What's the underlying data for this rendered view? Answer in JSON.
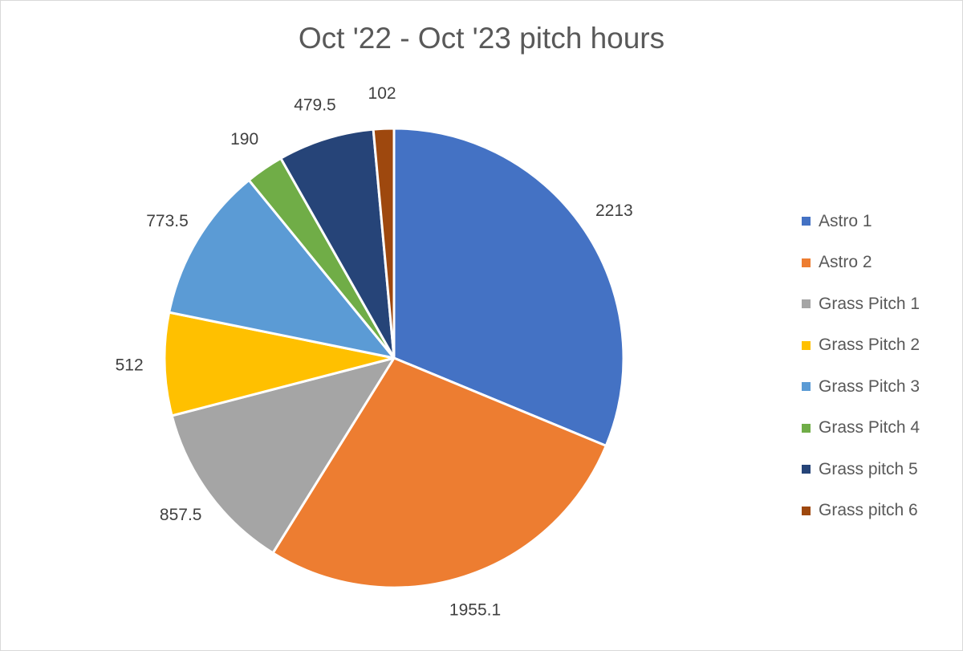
{
  "chart_data": {
    "type": "pie",
    "title": "Oct '22 - Oct '23 pitch hours",
    "categories": [
      "Astro 1",
      "Astro 2",
      "Grass Pitch 1",
      "Grass Pitch 2",
      "Grass Pitch 3",
      "Grass Pitch 4",
      "Grass pitch 5",
      "Grass pitch 6"
    ],
    "values": [
      2213,
      1955.1,
      857.5,
      512,
      773.5,
      190,
      479.5,
      102
    ],
    "value_labels": [
      "2213",
      "1955.1",
      "857.5",
      "512",
      "773.5",
      "190",
      "479.5",
      "102"
    ],
    "colors": [
      "#4472C4",
      "#ED7D31",
      "#A5A5A5",
      "#FFC000",
      "#5B9BD5",
      "#70AD47",
      "#264478",
      "#9E480E"
    ],
    "legend_position": "right",
    "start_angle": "12 o'clock, clockwise"
  }
}
